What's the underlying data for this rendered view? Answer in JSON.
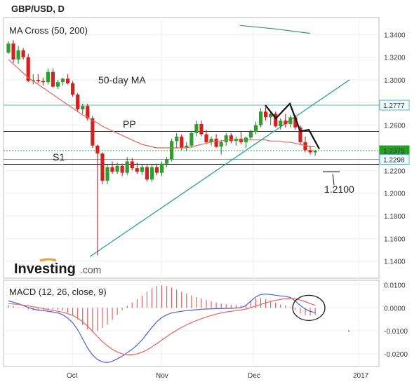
{
  "chart_data": [
    {
      "type": "candlestick",
      "title": "GBP/USD, D",
      "indicator": "MA Cross (50, 200)",
      "ylim": [
        1.125,
        1.355
      ],
      "y_ticks": [
        "1.3400",
        "1.3200",
        "1.3000",
        "1.2800",
        "1.2600",
        "1.2400",
        "1.2200",
        "1.2000",
        "1.1800",
        "1.1600",
        "1.1400"
      ],
      "x_ticks": [
        "Oct",
        "Nov",
        "Dec",
        "2017"
      ],
      "annotations": {
        "ma50": "50-day MA",
        "pp": "PP",
        "s1": "S1",
        "target": "1.2100"
      },
      "price_labels": [
        "1.2777",
        "1.2375",
        "1.2298"
      ],
      "levels": {
        "upper": 1.2777,
        "pp": 1.2545,
        "last": 1.2375,
        "s1": 1.2298,
        "lower": 1.2255
      },
      "colors": {
        "up": "#2e9e2e",
        "down": "#d62020",
        "ma50": "#e8625a",
        "ma200": "#3a9a50",
        "trend": "#2aa198",
        "level_teal": "#5bb8c8",
        "last": "#21a321",
        "macd": "#4a5fd8",
        "signal": "#e8625a",
        "hist": "#e04040"
      },
      "candles": [
        [
          1.324,
          1.334,
          1.323,
          1.332
        ],
        [
          1.332,
          1.335,
          1.315,
          1.318
        ],
        [
          1.318,
          1.33,
          1.314,
          1.326
        ],
        [
          1.326,
          1.328,
          1.318,
          1.32
        ],
        [
          1.32,
          1.323,
          1.298,
          1.299
        ],
        [
          1.299,
          1.305,
          1.296,
          1.3
        ],
        [
          1.3,
          1.305,
          1.297,
          1.299
        ],
        [
          1.299,
          1.302,
          1.295,
          1.298
        ],
        [
          1.298,
          1.31,
          1.296,
          1.307
        ],
        [
          1.307,
          1.31,
          1.293,
          1.294
        ],
        [
          1.294,
          1.3,
          1.292,
          1.298
        ],
        [
          1.298,
          1.302,
          1.295,
          1.301
        ],
        [
          1.301,
          1.305,
          1.296,
          1.297
        ],
        [
          1.297,
          1.299,
          1.285,
          1.287
        ],
        [
          1.287,
          1.288,
          1.272,
          1.274
        ],
        [
          1.274,
          1.279,
          1.27,
          1.277
        ],
        [
          1.277,
          1.279,
          1.264,
          1.266
        ],
        [
          1.266,
          1.268,
          1.24,
          1.242
        ],
        [
          1.242,
          1.243,
          1.145,
          1.235
        ],
        [
          1.235,
          1.236,
          1.208,
          1.211
        ],
        [
          1.211,
          1.225,
          1.208,
          1.223
        ],
        [
          1.223,
          1.228,
          1.217,
          1.219
        ],
        [
          1.219,
          1.227,
          1.217,
          1.224
        ],
        [
          1.224,
          1.226,
          1.215,
          1.218
        ],
        [
          1.218,
          1.232,
          1.216,
          1.228
        ],
        [
          1.228,
          1.231,
          1.22,
          1.222
        ],
        [
          1.222,
          1.227,
          1.217,
          1.219
        ],
        [
          1.219,
          1.226,
          1.216,
          1.223
        ],
        [
          1.223,
          1.225,
          1.21,
          1.212
        ],
        [
          1.212,
          1.225,
          1.21,
          1.223
        ],
        [
          1.223,
          1.226,
          1.216,
          1.218
        ],
        [
          1.218,
          1.228,
          1.215,
          1.226
        ],
        [
          1.226,
          1.232,
          1.223,
          1.23
        ],
        [
          1.23,
          1.248,
          1.228,
          1.246
        ],
        [
          1.246,
          1.253,
          1.24,
          1.25
        ],
        [
          1.25,
          1.252,
          1.238,
          1.24
        ],
        [
          1.24,
          1.245,
          1.237,
          1.242
        ],
        [
          1.242,
          1.255,
          1.24,
          1.253
        ],
        [
          1.253,
          1.264,
          1.25,
          1.261
        ],
        [
          1.261,
          1.264,
          1.25,
          1.252
        ],
        [
          1.252,
          1.256,
          1.244,
          1.245
        ],
        [
          1.245,
          1.25,
          1.242,
          1.248
        ],
        [
          1.248,
          1.252,
          1.24,
          1.241
        ],
        [
          1.241,
          1.247,
          1.234,
          1.245
        ],
        [
          1.245,
          1.253,
          1.242,
          1.251
        ],
        [
          1.251,
          1.253,
          1.244,
          1.246
        ],
        [
          1.246,
          1.25,
          1.242,
          1.248
        ],
        [
          1.248,
          1.254,
          1.243,
          1.245
        ],
        [
          1.245,
          1.25,
          1.24,
          1.249
        ],
        [
          1.249,
          1.256,
          1.247,
          1.254
        ],
        [
          1.254,
          1.263,
          1.252,
          1.26
        ],
        [
          1.26,
          1.275,
          1.258,
          1.272
        ],
        [
          1.272,
          1.276,
          1.264,
          1.267
        ],
        [
          1.267,
          1.272,
          1.26,
          1.27
        ],
        [
          1.27,
          1.272,
          1.258,
          1.259
        ],
        [
          1.259,
          1.266,
          1.256,
          1.264
        ],
        [
          1.264,
          1.27,
          1.258,
          1.261
        ],
        [
          1.261,
          1.269,
          1.258,
          1.267
        ],
        [
          1.267,
          1.269,
          1.256,
          1.258
        ],
        [
          1.258,
          1.26,
          1.243,
          1.245
        ],
        [
          1.245,
          1.25,
          1.236,
          1.238
        ],
        [
          1.238,
          1.242,
          1.234,
          1.236
        ],
        [
          1.236,
          1.238,
          1.233,
          1.2375
        ]
      ],
      "ma50": [
        1.318,
        1.314,
        1.31,
        1.306,
        1.302,
        1.299,
        1.296,
        1.293,
        1.29,
        1.287,
        1.284,
        1.281,
        1.278,
        1.275,
        1.272,
        1.269,
        1.267,
        1.264,
        1.262,
        1.259,
        1.257,
        1.255,
        1.253,
        1.251,
        1.249,
        1.247,
        1.245,
        1.243,
        1.242,
        1.241,
        1.24,
        1.24,
        1.24,
        1.24,
        1.24,
        1.24,
        1.24,
        1.241,
        1.242,
        1.243,
        1.244,
        1.245,
        1.246,
        1.246,
        1.247,
        1.247,
        1.247,
        1.247,
        1.247,
        1.247,
        1.247,
        1.247,
        1.247,
        1.246,
        1.246,
        1.246,
        1.245,
        1.245,
        1.244,
        1.243,
        1.242,
        1.241,
        1.241
      ],
      "ma200": [
        1.348,
        1.345,
        1.341
      ]
    },
    {
      "type": "line",
      "title": "MACD (12, 26, close, 9)",
      "ylim": [
        -0.0255,
        0.012
      ],
      "y_ticks": [
        "0.0100",
        "0.0000",
        "-0.0100",
        "-0.0200"
      ],
      "macd": [
        0.003,
        0.0025,
        0.0018,
        0.001,
        0.0002,
        -0.0005,
        -0.001,
        -0.0012,
        -0.0015,
        -0.0018,
        -0.0022,
        -0.003,
        -0.0045,
        -0.0065,
        -0.0095,
        -0.0135,
        -0.0175,
        -0.0205,
        -0.0225,
        -0.0235,
        -0.0238,
        -0.0232,
        -0.0222,
        -0.021,
        -0.0195,
        -0.018,
        -0.0162,
        -0.014,
        -0.0112,
        -0.0085,
        -0.006,
        -0.0042,
        -0.003,
        -0.0022,
        -0.0018,
        -0.0015,
        -0.0012,
        -0.001,
        -0.0008,
        -0.0006,
        -0.0005,
        -0.0004,
        -0.0003,
        -0.0003,
        -0.0002,
        -0.0002,
        -0.0001,
        0.0001,
        0.001,
        0.003,
        0.0048,
        0.0058,
        0.006,
        0.0058,
        0.0055,
        0.0052,
        0.005,
        0.0045,
        0.003,
        0.001,
        -0.0005,
        -0.0015,
        -0.002
      ],
      "signal": [
        0.0018,
        0.0017,
        0.0015,
        0.0012,
        0.0009,
        0.0005,
        0.0001,
        -0.0003,
        -0.0007,
        -0.0011,
        -0.0015,
        -0.0019,
        -0.0025,
        -0.0033,
        -0.0045,
        -0.006,
        -0.008,
        -0.0102,
        -0.0125,
        -0.0147,
        -0.0165,
        -0.018,
        -0.0192,
        -0.02,
        -0.0204,
        -0.0204,
        -0.02,
        -0.0193,
        -0.0183,
        -0.017,
        -0.0155,
        -0.014,
        -0.0125,
        -0.011,
        -0.0097,
        -0.0085,
        -0.0074,
        -0.0064,
        -0.0055,
        -0.0047,
        -0.004,
        -0.0033,
        -0.0027,
        -0.0022,
        -0.0018,
        -0.0015,
        -0.0012,
        -0.0009,
        -0.0005,
        0.0001,
        0.0008,
        0.0015,
        0.0022,
        0.0028,
        0.0033,
        0.0037,
        0.004,
        0.0041,
        0.0039,
        0.0034,
        0.0027,
        0.0019,
        0.0011
      ],
      "histogram": [
        0.0012,
        0.0008,
        0.0003,
        -0.0002,
        -0.0007,
        -0.001,
        -0.0011,
        -0.0009,
        -0.0008,
        -0.0007,
        -0.0007,
        -0.0011,
        -0.002,
        -0.0032,
        -0.005,
        -0.0075,
        -0.0095,
        -0.0103,
        -0.01,
        -0.0088,
        -0.0073,
        -0.0052,
        -0.003,
        -0.001,
        0.0009,
        0.0024,
        0.0038,
        0.0053,
        0.0071,
        0.0085,
        0.0095,
        0.0098,
        0.0095,
        0.0088,
        0.0079,
        0.007,
        0.0062,
        0.0054,
        0.0047,
        0.0041,
        0.0035,
        0.0029,
        0.0024,
        0.0019,
        0.0016,
        0.0013,
        0.0011,
        0.001,
        0.0015,
        0.0029,
        0.004,
        0.0043,
        0.0038,
        0.003,
        0.0022,
        0.0015,
        0.001,
        0.0004,
        -0.0009,
        -0.0024,
        -0.0032,
        -0.0034,
        -0.0031
      ]
    }
  ],
  "brand": {
    "name": "Investing",
    "suffix": ".com"
  }
}
